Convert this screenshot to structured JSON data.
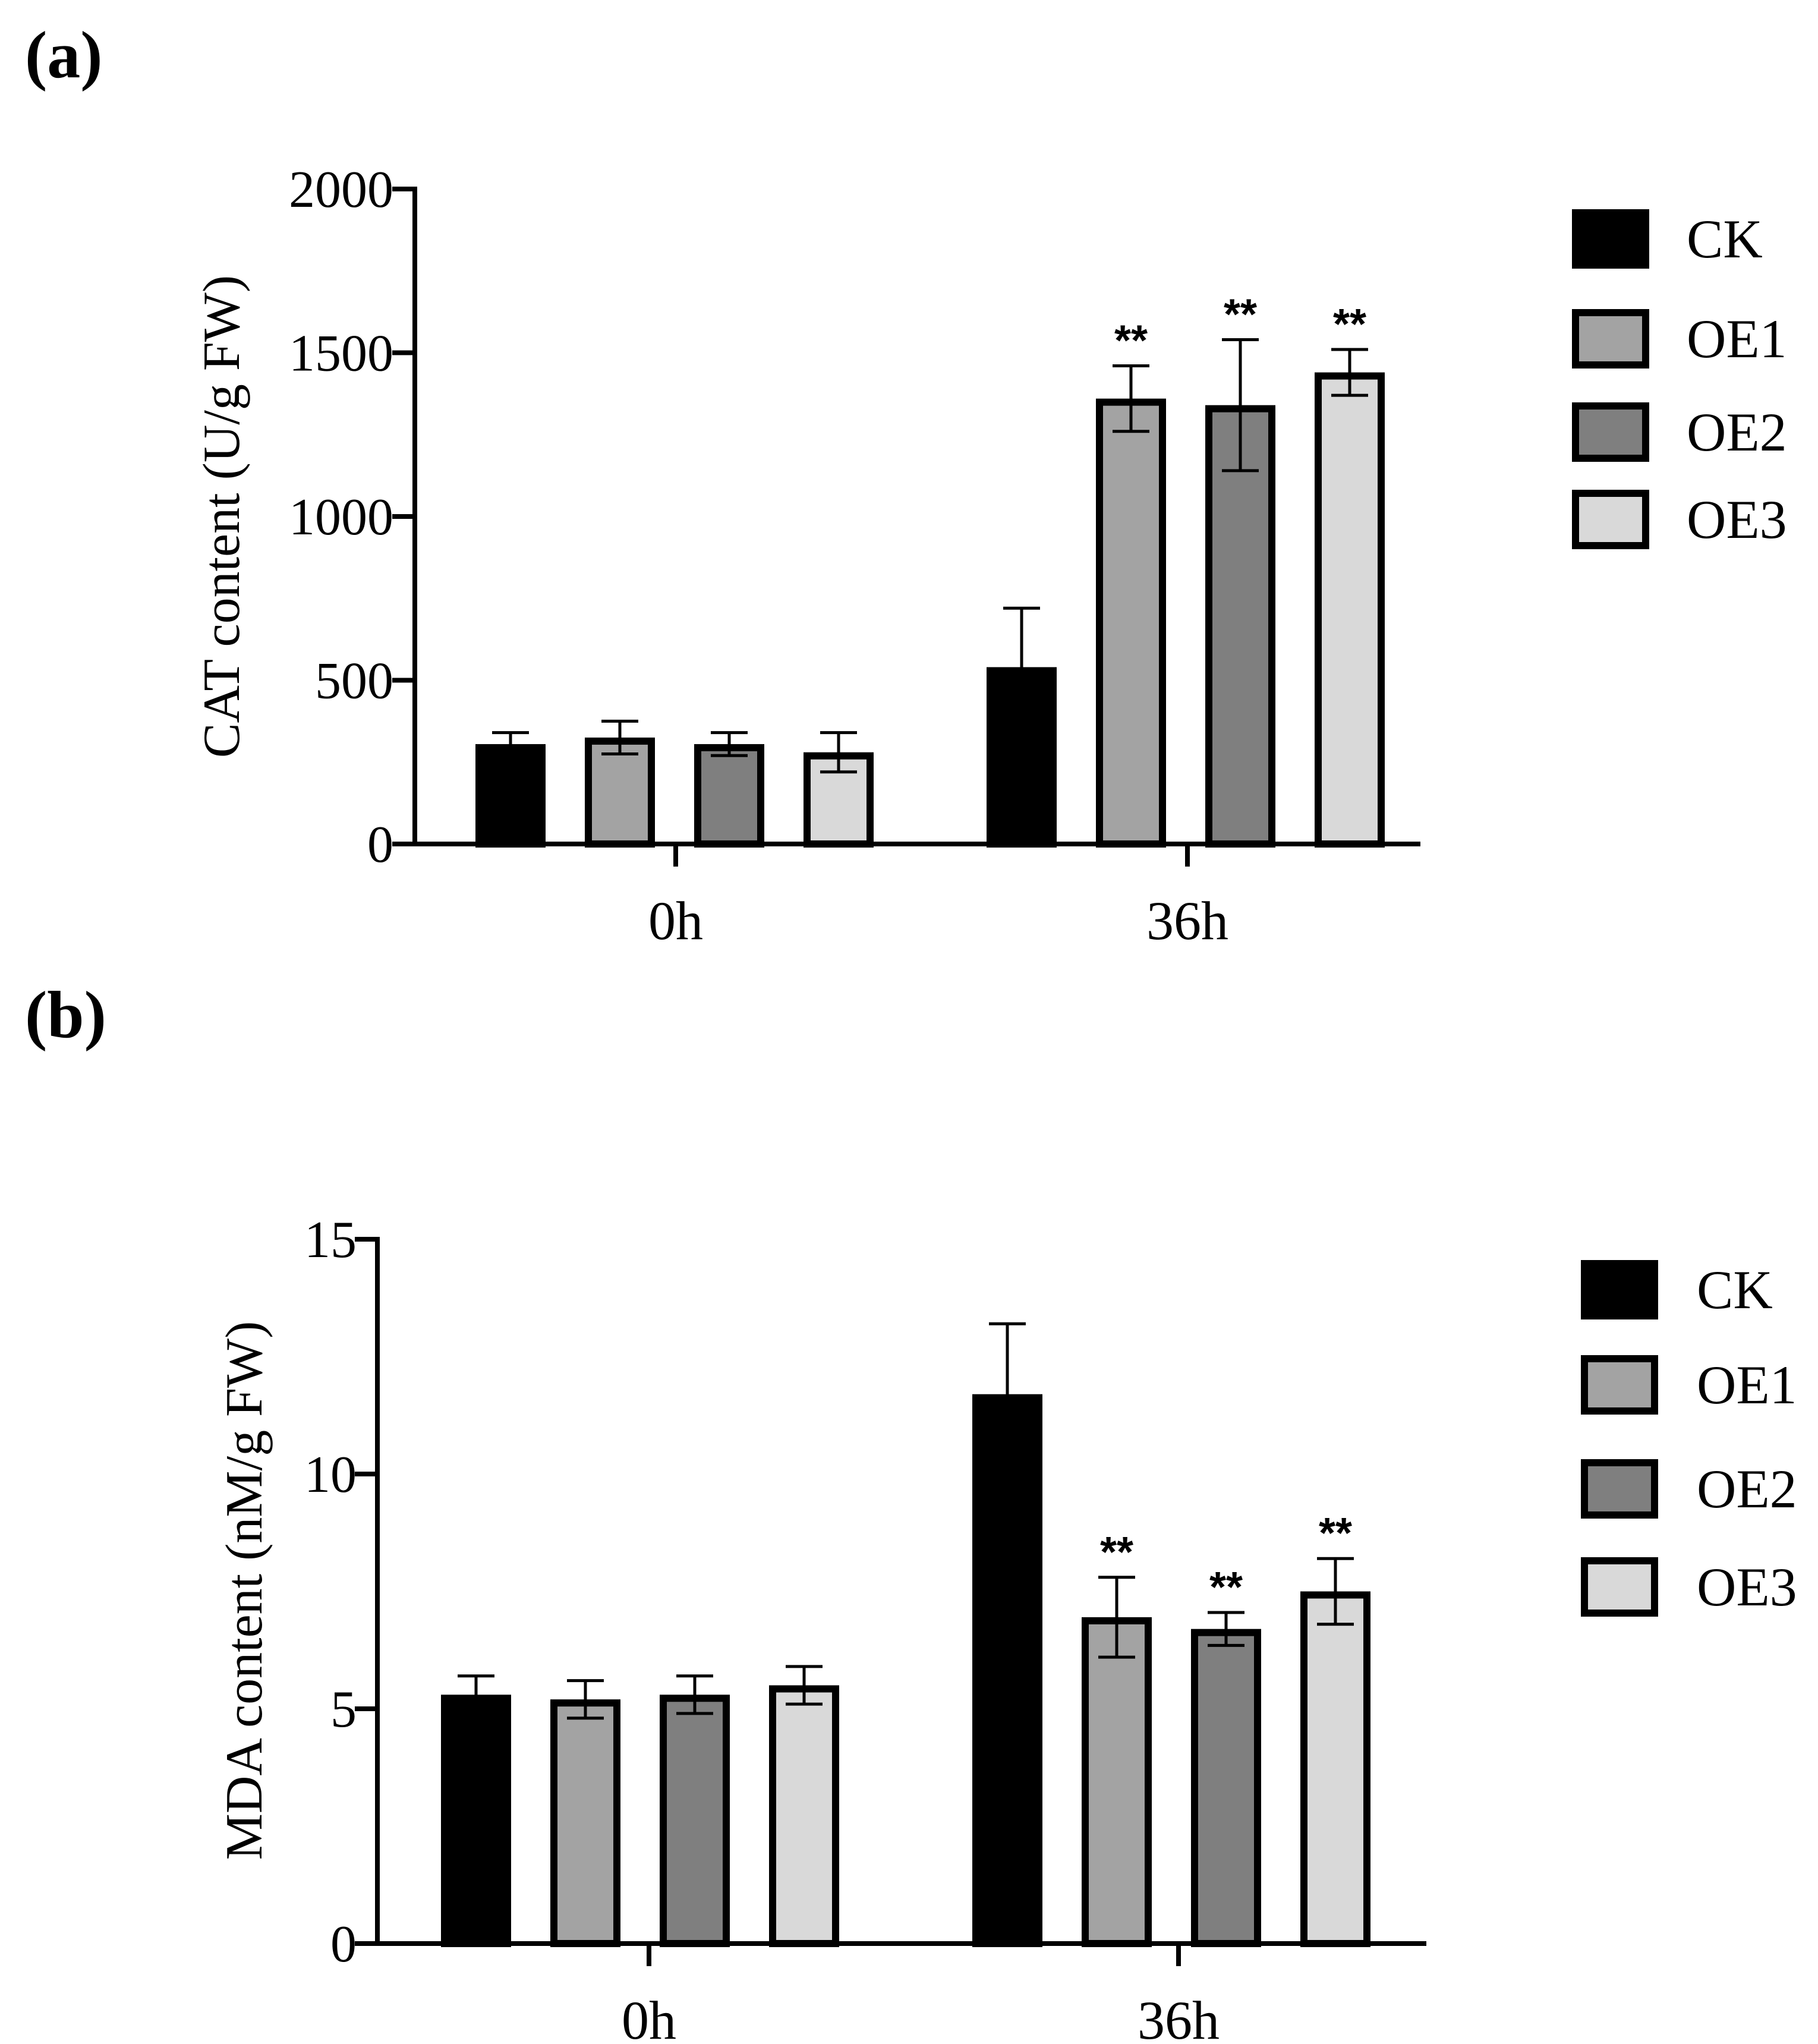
{
  "colors": {
    "CK": "#000000",
    "OE1": "#a3a3a3",
    "OE2": "#7f7f7f",
    "OE3": "#d9d9d9",
    "stroke": "#000000"
  },
  "chart_data": [
    {
      "panel_label": "(a)",
      "type": "bar",
      "categories": [
        "0h",
        "36h"
      ],
      "ylabel": "CAT content (U/g FW)",
      "ylim": [
        0,
        2000
      ],
      "yticks": [
        "0",
        "500",
        "1000",
        "1500",
        "2000"
      ],
      "legend": [
        "CK",
        "OE1",
        "OE2",
        "OE3"
      ],
      "series": [
        {
          "name": "CK",
          "values": [
            305,
            540
          ],
          "errors": [
            35,
            180
          ],
          "sig": [
            "",
            ""
          ]
        },
        {
          "name": "OE1",
          "values": [
            325,
            1360
          ],
          "errors": [
            50,
            100
          ],
          "sig": [
            "",
            "**"
          ]
        },
        {
          "name": "OE2",
          "values": [
            305,
            1340
          ],
          "errors": [
            35,
            200
          ],
          "sig": [
            "",
            "**"
          ]
        },
        {
          "name": "OE3",
          "values": [
            280,
            1440
          ],
          "errors": [
            60,
            70
          ],
          "sig": [
            "",
            "**"
          ]
        }
      ]
    },
    {
      "panel_label": "(b)",
      "type": "bar",
      "categories": [
        "0h",
        "36h"
      ],
      "ylabel": "MDA content (nM/g FW)",
      "ylim": [
        0,
        15
      ],
      "yticks": [
        "0",
        "5",
        "10",
        "15"
      ],
      "legend": [
        "CK",
        "OE1",
        "OE2",
        "OE3"
      ],
      "series": [
        {
          "name": "CK",
          "values": [
            5.3,
            11.7
          ],
          "errors": [
            0.4,
            1.5
          ],
          "sig": [
            "",
            ""
          ]
        },
        {
          "name": "OE1",
          "values": [
            5.2,
            6.95
          ],
          "errors": [
            0.4,
            0.85
          ],
          "sig": [
            "",
            "**"
          ]
        },
        {
          "name": "OE2",
          "values": [
            5.3,
            6.7
          ],
          "errors": [
            0.4,
            0.35
          ],
          "sig": [
            "",
            "**"
          ]
        },
        {
          "name": "OE3",
          "values": [
            5.5,
            7.5
          ],
          "errors": [
            0.4,
            0.7
          ],
          "sig": [
            "",
            "**"
          ]
        }
      ]
    }
  ]
}
